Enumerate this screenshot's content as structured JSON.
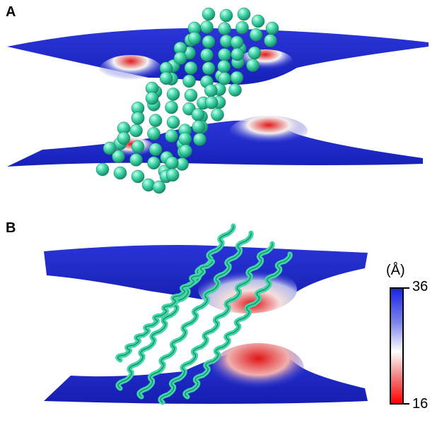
{
  "panels": [
    {
      "label": "A"
    },
    {
      "label": "B"
    }
  ],
  "scale": {
    "unit": "(Å)",
    "max": "36",
    "min": "16",
    "colors": {
      "high": "#1a24e6",
      "mid": "#ffffff",
      "low": "#ff0000"
    }
  },
  "colors": {
    "membrane": "#1f2ad0",
    "protein": "#3fd6a8"
  }
}
